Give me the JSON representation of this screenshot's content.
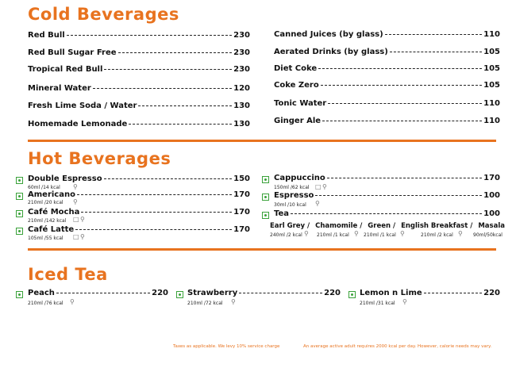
{
  "sections": {
    "cold": "Cold Beverages",
    "hot": "Hot Beverages",
    "iced": "Iced Tea"
  },
  "cold_left": [
    {
      "name": "Red Bull",
      "price": "230"
    },
    {
      "name": "Red Bull Sugar Free",
      "price": "230"
    },
    {
      "name": "Tropical Red Bull",
      "price": "230"
    },
    {
      "name": "Mineral Water",
      "price": "120"
    },
    {
      "name": "Fresh Lime Soda / Water",
      "price": "130"
    },
    {
      "name": "Homemade Lemonade",
      "price": "130"
    }
  ],
  "cold_right": [
    {
      "name": "Canned Juices (by glass)",
      "price": "110"
    },
    {
      "name": "Aerated Drinks (by glass)",
      "price": "105"
    },
    {
      "name": "Diet Coke",
      "price": "105"
    },
    {
      "name": "Coke Zero",
      "price": "105"
    },
    {
      "name": "Tonic Water",
      "price": "110"
    },
    {
      "name": "Ginger Ale",
      "price": "110"
    }
  ],
  "hot_left": [
    {
      "name": "Double Espresso",
      "price": "150",
      "info": "60ml /14 kcal"
    },
    {
      "name": "Americano",
      "price": "170",
      "info": "210ml /20 kcal"
    },
    {
      "name": "Café Mocha",
      "price": "170",
      "info": "210ml /142 kcal"
    },
    {
      "name": "Café Latte",
      "price": "170",
      "info": "105ml /55 kcal"
    }
  ],
  "hot_right": [
    {
      "name": "Cappuccino",
      "price": "170",
      "info": "150ml /62 kcal"
    },
    {
      "name": "Espresso",
      "price": "100",
      "info": "30ml /10 kcal"
    },
    {
      "name": "Tea",
      "price": "100",
      "info": ""
    }
  ],
  "tea_variants": [
    {
      "name": "Earl Grey /",
      "info": "240ml /2 kcal"
    },
    {
      "name": "Chamomile /",
      "info": "210ml /1 kcal"
    },
    {
      "name": "Green /",
      "info": "210ml /1 kcal"
    },
    {
      "name": "English Breakfast /",
      "info": "210ml /2 kcal"
    },
    {
      "name": "Masala",
      "info": "90ml/50kcal"
    }
  ],
  "iced": [
    {
      "name": "Peach",
      "price": "220",
      "info": "210ml /76 kcal"
    },
    {
      "name": "Strawberry",
      "price": "220",
      "info": "210ml /72 kcal"
    },
    {
      "name": "Lemon n Lime",
      "price": "220",
      "info": "210ml /31 kcal"
    }
  ],
  "footer": {
    "tax": "Taxes as applicable. We levy 10% service charge",
    "calorie": "An average active adult requires 2000 kcal per day. However, calorie needs may vary."
  },
  "colors": {
    "accent": "#e8731f",
    "veg": "#3aa23a"
  },
  "icons": {
    "glass": "glass-icon",
    "cup": "cup-icon"
  }
}
